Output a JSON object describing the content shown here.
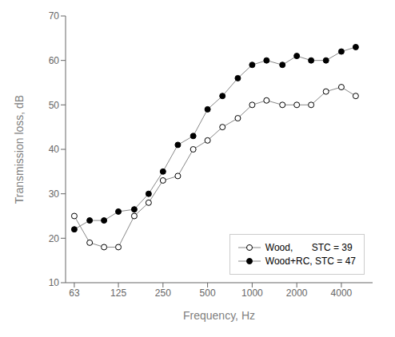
{
  "chart_data": {
    "type": "line",
    "x": [
      63,
      80,
      100,
      125,
      160,
      200,
      250,
      315,
      400,
      500,
      630,
      800,
      1000,
      1250,
      1600,
      2000,
      2500,
      3150,
      4000,
      5000
    ],
    "series": [
      {
        "name": "Wood,       STC = 39",
        "color": "#888888",
        "marker": "circle-open",
        "values": [
          25,
          19,
          18,
          18,
          25,
          28,
          33,
          34,
          40,
          42,
          45,
          47,
          50,
          51,
          50,
          50,
          50,
          53,
          54,
          52
        ]
      },
      {
        "name": "Wood+RC, STC = 47",
        "color": "#888888",
        "marker": "circle",
        "values": [
          22,
          24,
          24,
          26,
          26.5,
          30,
          35,
          41,
          43,
          49,
          52,
          56,
          59,
          60,
          59,
          61,
          60,
          60,
          62,
          63
        ]
      }
    ],
    "xlabel": "Frequency, Hz",
    "ylabel": "Transmission loss, dB",
    "log": "x",
    "xlim": [
      55,
      6500
    ],
    "xticks": [
      63,
      125,
      250,
      500,
      1000,
      2000,
      4000
    ],
    "ylim": [
      10,
      70
    ],
    "yticks": [
      10,
      20,
      30,
      40,
      50,
      60,
      70
    ],
    "grid": false,
    "legend": "lower right"
  }
}
